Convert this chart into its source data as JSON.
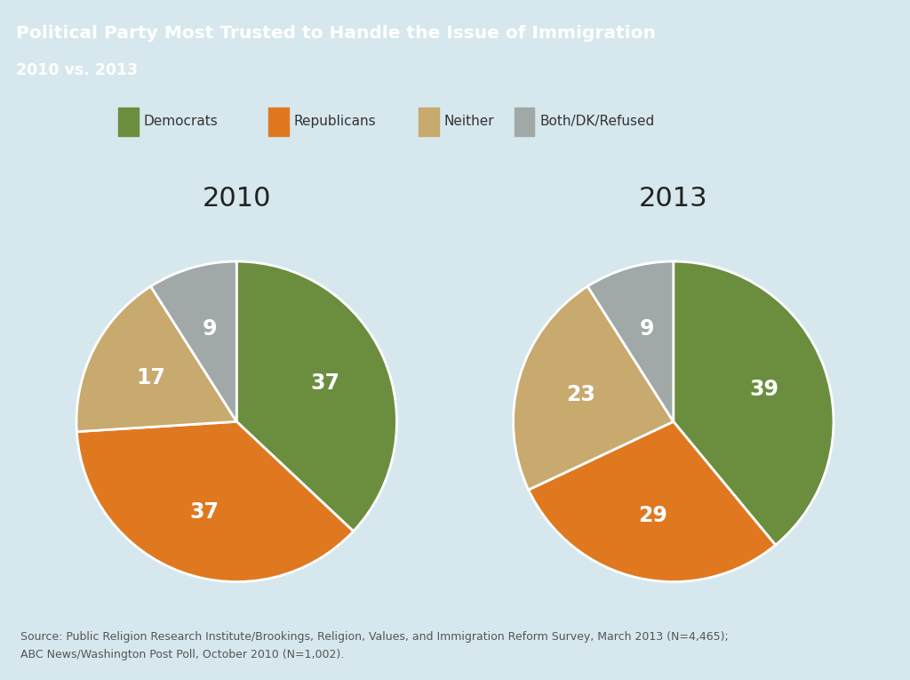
{
  "title_line1": "Political Party Most Trusted to Handle the Issue of Immigration",
  "title_line2": "2010 vs. 2013",
  "title_bg_color": "#2a8a8a",
  "main_bg_color": "#d6e8ed",
  "legend_labels": [
    "Democrats",
    "Republicans",
    "Neither",
    "Both/DK/Refused"
  ],
  "colors": [
    "#6b8e3e",
    "#e07820",
    "#c8a96e",
    "#a0a8a8"
  ],
  "pie2010": [
    37,
    37,
    17,
    9
  ],
  "pie2013": [
    39,
    29,
    23,
    9
  ],
  "year2010": "2010",
  "year2013": "2013",
  "source_text": "Source: Public Religion Research Institute/Brookings, Religion, Values, and Immigration Reform Survey, March 2013 (N=4,465);\nABC News/Washington Post Poll, October 2010 (N=1,002)."
}
